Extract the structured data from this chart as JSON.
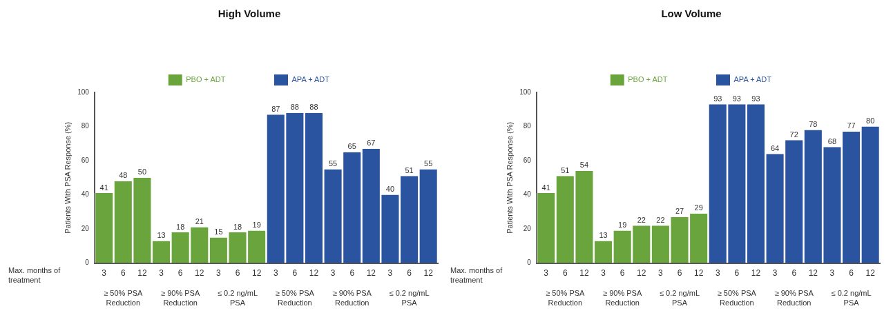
{
  "chart_data": [
    {
      "type": "bar",
      "title": "High Volume",
      "ylabel": "Patients With PSA Response (%)",
      "xlabel": "Max. months of treatment",
      "categories": [
        "3",
        "6",
        "12",
        "3",
        "6",
        "12",
        "3",
        "6",
        "12",
        "3",
        "6",
        "12",
        "3",
        "6",
        "12",
        "3",
        "6",
        "12"
      ],
      "series": [
        {
          "name": "PBO + ADT",
          "color": "#6aa43c",
          "values": [
            41,
            48,
            50,
            13,
            18,
            21,
            15,
            18,
            19,
            null,
            null,
            null,
            null,
            null,
            null,
            null,
            null,
            null
          ]
        },
        {
          "name": "APA + ADT",
          "color": "#2b54a0",
          "values": [
            null,
            null,
            null,
            null,
            null,
            null,
            null,
            null,
            null,
            87,
            88,
            88,
            55,
            65,
            67,
            40,
            51,
            55
          ]
        }
      ],
      "annotations": [
        "≥ 50% PSA Reduction",
        "≥ 90% PSA Reduction",
        "≤ 0.2 ng/mL PSA",
        "≥ 50% PSA Reduction",
        "≥ 90% PSA Reduction",
        "≤ 0.2 ng/mL PSA"
      ],
      "ylim": [
        0,
        100
      ],
      "yticks": [
        0,
        20,
        40,
        60,
        80,
        100
      ],
      "grid": false,
      "legend": "top",
      "data_labels": true
    },
    {
      "type": "bar",
      "title": "Low Volume",
      "ylabel": "Patients With PSA Response (%)",
      "xlabel": "Max. months of treatment",
      "categories": [
        "3",
        "6",
        "12",
        "3",
        "6",
        "12",
        "3",
        "6",
        "12",
        "3",
        "6",
        "12",
        "3",
        "6",
        "12",
        "3",
        "6",
        "12"
      ],
      "series": [
        {
          "name": "PBO + ADT",
          "color": "#6aa43c",
          "values": [
            41,
            51,
            54,
            13,
            19,
            22,
            22,
            27,
            29,
            null,
            null,
            null,
            null,
            null,
            null,
            null,
            null,
            null
          ]
        },
        {
          "name": "APA + ADT",
          "color": "#2b54a0",
          "values": [
            null,
            null,
            null,
            null,
            null,
            null,
            null,
            null,
            null,
            93,
            93,
            93,
            64,
            72,
            78,
            68,
            77,
            80
          ]
        }
      ],
      "annotations": [
        "≥ 50% PSA Reduction",
        "≥ 90% PSA Reduction",
        "≤ 0.2 ng/mL PSA",
        "≥ 50% PSA Reduction",
        "≥ 90% PSA Reduction",
        "≤ 0.2 ng/mL PSA"
      ],
      "ylim": [
        0,
        100
      ],
      "yticks": [
        0,
        20,
        40,
        60,
        80,
        100
      ],
      "grid": false,
      "legend": "top",
      "data_labels": true
    }
  ]
}
